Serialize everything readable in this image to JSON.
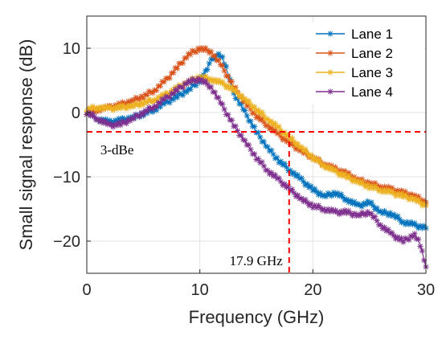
{
  "chart_data": {
    "type": "line",
    "xlabel": "Frequency (GHz)",
    "ylabel": "Small signal response (dB)",
    "xlim": [
      0,
      30
    ],
    "ylim": [
      -25,
      15
    ],
    "xticks": [
      0,
      10,
      20,
      30
    ],
    "yticks": [
      10,
      0,
      -10,
      -20
    ],
    "grid": true,
    "legend_position": "top-right",
    "series": [
      {
        "name": "Lane 1",
        "color": "#0072BD",
        "marker": "asterisk",
        "x": [
          0,
          1,
          2,
          3,
          4,
          5,
          6,
          7,
          8,
          9,
          10,
          10.5,
          11,
          11.5,
          12,
          12.5,
          13,
          14,
          15,
          16,
          17,
          18,
          19,
          20,
          21,
          22,
          23,
          24,
          25,
          26,
          27,
          28,
          29,
          30
        ],
        "y": [
          0,
          -1,
          -1.5,
          -1.2,
          -0.8,
          -0.2,
          0.5,
          1.5,
          2.5,
          3.5,
          5,
          6.5,
          8,
          9,
          8.5,
          6,
          3,
          0,
          -3,
          -5.5,
          -7.5,
          -9,
          -10.5,
          -12,
          -13,
          -12.5,
          -13.5,
          -14.5,
          -14,
          -15.5,
          -15.8,
          -17,
          -17.5,
          -18
        ]
      },
      {
        "name": "Lane 2",
        "color": "#D95319",
        "marker": "asterisk",
        "x": [
          0,
          1,
          2,
          3,
          4,
          5,
          6,
          7,
          8,
          9,
          10,
          11,
          12,
          13,
          14,
          15,
          16,
          17,
          18,
          19,
          20,
          21,
          22,
          23,
          24,
          25,
          26,
          27,
          28,
          29,
          30
        ],
        "y": [
          0,
          0.5,
          0.8,
          1.2,
          1.8,
          2.5,
          3.5,
          5,
          7,
          9,
          10,
          9.5,
          7,
          4,
          1.5,
          -0.5,
          -2,
          -3.5,
          -4.8,
          -6,
          -7,
          -8,
          -8.8,
          -9.5,
          -10.5,
          -11,
          -11.5,
          -12,
          -12.5,
          -13,
          -14
        ]
      },
      {
        "name": "Lane 3",
        "color": "#EDB120",
        "marker": "asterisk",
        "x": [
          0,
          1,
          2,
          3,
          4,
          5,
          6,
          7,
          8,
          9,
          10,
          11,
          12,
          13,
          14,
          15,
          16,
          17,
          18,
          19,
          20,
          21,
          22,
          23,
          24,
          25,
          26,
          27,
          28,
          29,
          30
        ],
        "y": [
          0.5,
          0.8,
          0.6,
          0.8,
          1,
          1.5,
          2,
          2.8,
          3.8,
          4.8,
          5.5,
          5.2,
          4.5,
          3.5,
          2,
          0.5,
          -1,
          -2.5,
          -4,
          -5.5,
          -7,
          -8.2,
          -9.2,
          -10,
          -10.8,
          -11.5,
          -12,
          -12.5,
          -13,
          -13.5,
          -14.5
        ]
      },
      {
        "name": "Lane 4",
        "color": "#7E2F8E",
        "marker": "asterisk",
        "x": [
          0,
          1,
          2,
          3,
          4,
          5,
          6,
          7,
          8,
          9,
          10,
          11,
          12,
          13,
          14,
          15,
          16,
          17,
          18,
          19,
          20,
          21,
          22,
          23,
          24,
          25,
          26,
          27,
          28,
          29,
          29.5,
          30
        ],
        "y": [
          0,
          -1,
          -2,
          -1.8,
          -1,
          0,
          1,
          2.2,
          3.5,
          4.8,
          5.2,
          4,
          1,
          -2,
          -4.5,
          -7,
          -9,
          -10.5,
          -12,
          -13.5,
          -14.5,
          -15,
          -15.5,
          -15.5,
          -16,
          -15.5,
          -17.5,
          -19,
          -20,
          -19,
          -20.5,
          -24
        ]
      }
    ],
    "reference_lines": [
      {
        "orientation": "horizontal",
        "value": -3,
        "color": "#FF0000",
        "style": "dashed"
      },
      {
        "orientation": "vertical",
        "value": 17.9,
        "color": "#FF0000",
        "style": "dashed"
      }
    ],
    "annotations": [
      {
        "text": "3-dBe"
      },
      {
        "text": "17.9 GHz"
      }
    ]
  }
}
